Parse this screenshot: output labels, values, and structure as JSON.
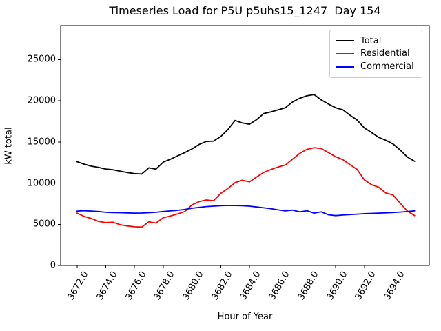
{
  "chart_data": {
    "type": "line",
    "title": "Timeseries Load for P5U p5uhs15_1247  Day 154",
    "xlabel": "Hour of Year",
    "ylabel": "kW total",
    "xlim": [
      3670.86,
      3696.52
    ],
    "ylim": [
      0,
      29130
    ],
    "grid": false,
    "legend_position": "upper right",
    "xtick_labels": [
      "3672.0",
      "3674.0",
      "3676.0",
      "3678.0",
      "3680.0",
      "3682.0",
      "3684.0",
      "3686.0",
      "3688.0",
      "3690.0",
      "3692.0",
      "3694.0"
    ],
    "ytick_labels": [
      "0",
      "5000",
      "10000",
      "15000",
      "20000",
      "25000"
    ],
    "x": [
      3672.0,
      3672.5,
      3673.0,
      3673.5,
      3674.0,
      3674.5,
      3675.0,
      3675.5,
      3676.0,
      3676.5,
      3677.0,
      3677.5,
      3678.0,
      3678.5,
      3679.0,
      3679.5,
      3680.0,
      3680.5,
      3681.0,
      3681.5,
      3682.0,
      3682.5,
      3683.0,
      3683.5,
      3684.0,
      3684.5,
      3685.0,
      3685.5,
      3686.0,
      3686.5,
      3687.0,
      3687.5,
      3688.0,
      3688.5,
      3689.0,
      3689.5,
      3690.0,
      3690.5,
      3691.0,
      3691.5,
      3692.0,
      3692.5,
      3693.0,
      3693.5,
      3694.0,
      3694.5,
      3695.0,
      3695.5
    ],
    "series": [
      {
        "name": "Total",
        "color": "#000000",
        "values": [
          12600,
          12300,
          12050,
          11900,
          11700,
          11620,
          11450,
          11280,
          11150,
          11100,
          11850,
          11700,
          12550,
          12900,
          13300,
          13700,
          14150,
          14700,
          15050,
          15100,
          15650,
          16500,
          17600,
          17300,
          17150,
          17700,
          18450,
          18650,
          18900,
          19150,
          19850,
          20300,
          20600,
          20750,
          20100,
          19600,
          19150,
          18900,
          18250,
          17650,
          16700,
          16150,
          15550,
          15200,
          14750,
          14000,
          13150,
          12650
        ]
      },
      {
        "name": "Residential",
        "color": "#ff0000",
        "values": [
          6350,
          5950,
          5700,
          5350,
          5200,
          5250,
          4950,
          4800,
          4700,
          4650,
          5300,
          5150,
          5800,
          6000,
          6250,
          6550,
          7350,
          7750,
          7950,
          7850,
          8750,
          9350,
          10050,
          10350,
          10150,
          10750,
          11300,
          11650,
          11950,
          12200,
          12900,
          13600,
          14100,
          14300,
          14200,
          13700,
          13200,
          12850,
          12250,
          11650,
          10400,
          9800,
          9500,
          8800,
          8550,
          7550,
          6600,
          6050
        ]
      },
      {
        "name": "Commercial",
        "color": "#0000ff",
        "values": [
          6600,
          6650,
          6600,
          6550,
          6450,
          6420,
          6400,
          6380,
          6350,
          6360,
          6400,
          6450,
          6550,
          6620,
          6700,
          6800,
          6950,
          7050,
          7150,
          7200,
          7250,
          7280,
          7270,
          7250,
          7200,
          7100,
          7000,
          6900,
          6750,
          6620,
          6720,
          6500,
          6650,
          6350,
          6500,
          6150,
          6050,
          6120,
          6180,
          6230,
          6290,
          6320,
          6350,
          6390,
          6430,
          6480,
          6550,
          6630
        ]
      }
    ]
  }
}
